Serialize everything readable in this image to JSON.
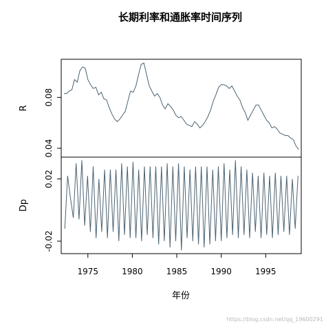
{
  "chart_data": {
    "type": "line",
    "title": "长期利率和通胀率时间序列",
    "xlabel": "年份",
    "x_ticks": [
      "1975",
      "1980",
      "1985",
      "1990",
      "1995"
    ],
    "xlim": [
      1972,
      1999
    ],
    "panels": [
      {
        "ylabel": "R",
        "ylim": [
          0.033,
          0.11
        ],
        "y_ticks": [
          "0.04",
          "0.08"
        ],
        "y_tick_values": [
          0.04,
          0.08
        ],
        "line_color": "#4a6272",
        "series": [
          {
            "x": [
              1972.3,
              1972.6,
              1972.9,
              1973.2,
              1973.5,
              1973.8,
              1974.1,
              1974.4,
              1974.7,
              1975.0,
              1975.3,
              1975.6,
              1975.9,
              1976.2,
              1976.5,
              1976.8,
              1977.1,
              1977.4,
              1977.7,
              1978.0,
              1978.3,
              1978.6,
              1978.9,
              1979.2,
              1979.5,
              1979.8,
              1980.1,
              1980.4,
              1980.7,
              1981.0,
              1981.3,
              1981.6,
              1981.9,
              1982.2,
              1982.5,
              1982.8,
              1983.1,
              1983.4,
              1983.7,
              1984.0,
              1984.3,
              1984.6,
              1984.9,
              1985.2,
              1985.5,
              1985.8,
              1986.1,
              1986.4,
              1986.7,
              1987.0,
              1987.3,
              1987.6,
              1987.9,
              1988.2,
              1988.5,
              1988.8,
              1989.1,
              1989.4,
              1989.7,
              1990.0,
              1990.3,
              1990.6,
              1990.9,
              1991.2,
              1991.5,
              1991.8,
              1992.1,
              1992.4,
              1992.7,
              1993.0,
              1993.3,
              1993.6,
              1993.9,
              1994.2,
              1994.5,
              1994.8,
              1995.1,
              1995.4,
              1995.7,
              1996.0,
              1996.3,
              1996.6,
              1996.9,
              1997.2,
              1997.5,
              1997.8,
              1998.1,
              1998.4,
              1998.7
            ],
            "y": [
              0.083,
              0.083,
              0.085,
              0.086,
              0.094,
              0.092,
              0.101,
              0.104,
              0.103,
              0.094,
              0.09,
              0.087,
              0.088,
              0.082,
              0.084,
              0.079,
              0.078,
              0.072,
              0.067,
              0.063,
              0.061,
              0.063,
              0.066,
              0.069,
              0.077,
              0.085,
              0.084,
              0.089,
              0.098,
              0.106,
              0.107,
              0.098,
              0.089,
              0.085,
              0.081,
              0.083,
              0.08,
              0.074,
              0.071,
              0.075,
              0.073,
              0.07,
              0.066,
              0.064,
              0.065,
              0.062,
              0.059,
              0.058,
              0.057,
              0.061,
              0.059,
              0.056,
              0.058,
              0.061,
              0.065,
              0.07,
              0.077,
              0.082,
              0.088,
              0.09,
              0.09,
              0.089,
              0.087,
              0.089,
              0.085,
              0.081,
              0.078,
              0.072,
              0.068,
              0.062,
              0.066,
              0.07,
              0.074,
              0.074,
              0.07,
              0.066,
              0.062,
              0.06,
              0.056,
              0.057,
              0.055,
              0.052,
              0.051,
              0.05,
              0.05,
              0.048,
              0.047,
              0.042,
              0.039
            ]
          }
        ]
      },
      {
        "ylabel": "Dp",
        "ylim": [
          -0.028,
          0.034
        ],
        "y_ticks": [
          "-0.02",
          "0.02"
        ],
        "y_tick_values": [
          -0.02,
          0.02
        ],
        "line_color": "#4a6272",
        "series": [
          {
            "x": [
              1972.4,
              1972.72,
              1973.04,
              1973.36,
              1973.68,
              1974.0,
              1974.32,
              1974.64,
              1974.96,
              1975.28,
              1975.6,
              1975.92,
              1976.24,
              1976.56,
              1976.88,
              1977.2,
              1977.52,
              1977.84,
              1978.16,
              1978.48,
              1978.8,
              1979.12,
              1979.44,
              1979.76,
              1980.08,
              1980.4,
              1980.72,
              1981.04,
              1981.36,
              1981.68,
              1982.0,
              1982.32,
              1982.64,
              1982.96,
              1983.28,
              1983.6,
              1983.92,
              1984.24,
              1984.56,
              1984.88,
              1985.2,
              1985.52,
              1985.84,
              1986.16,
              1986.48,
              1986.8,
              1987.12,
              1987.44,
              1987.76,
              1988.08,
              1988.4,
              1988.72,
              1989.04,
              1989.36,
              1989.68,
              1990.0,
              1990.32,
              1990.64,
              1990.96,
              1991.28,
              1991.6,
              1991.92,
              1992.24,
              1992.56,
              1992.88,
              1993.2,
              1993.52,
              1993.84,
              1994.16,
              1994.48,
              1994.8,
              1995.12,
              1995.44,
              1995.76,
              1996.08,
              1996.4,
              1996.72,
              1997.04,
              1997.36,
              1997.68,
              1998.0,
              1998.32,
              1998.64
            ],
            "y": [
              -0.012,
              0.022,
              0.008,
              -0.005,
              0.03,
              -0.006,
              0.032,
              -0.01,
              0.022,
              -0.014,
              0.028,
              -0.018,
              0.02,
              -0.014,
              0.026,
              -0.018,
              0.026,
              -0.014,
              0.026,
              -0.02,
              0.03,
              -0.016,
              0.028,
              -0.018,
              0.031,
              -0.018,
              0.026,
              -0.02,
              0.028,
              -0.016,
              0.028,
              -0.018,
              0.028,
              -0.022,
              0.028,
              -0.02,
              0.03,
              -0.024,
              0.028,
              -0.02,
              0.03,
              -0.026,
              0.028,
              -0.018,
              0.026,
              -0.02,
              0.028,
              -0.022,
              0.028,
              -0.024,
              0.028,
              -0.022,
              0.026,
              -0.02,
              0.028,
              -0.02,
              0.03,
              -0.018,
              0.026,
              -0.016,
              0.032,
              -0.018,
              0.028,
              -0.016,
              0.026,
              -0.018,
              0.024,
              -0.014,
              0.022,
              -0.018,
              0.024,
              -0.016,
              0.022,
              -0.018,
              0.024,
              -0.016,
              0.022,
              -0.014,
              0.022,
              -0.016,
              0.02,
              -0.012,
              0.022
            ]
          }
        ]
      }
    ]
  },
  "watermark": "https://blog.csdn.net/qq_19600291"
}
